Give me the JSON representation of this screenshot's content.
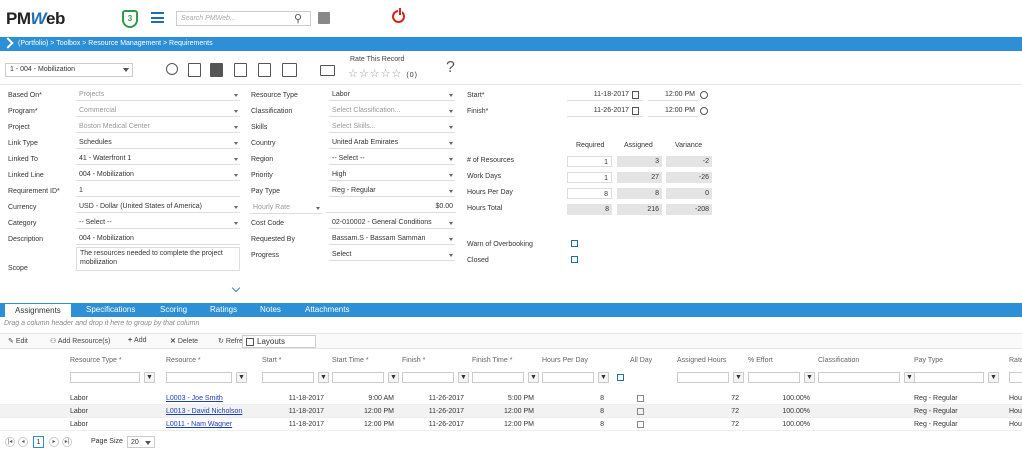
{
  "header": {
    "logo_prefix": "PM",
    "logo_w": "W",
    "logo_suffix": "eb",
    "shield_count": "3",
    "search_placeholder": "Search PMWeb..."
  },
  "breadcrumb": "(Portfolio) > Toolbox > Resource Management > Requirements",
  "toolbar": {
    "record_selector": "1 - 004 - Mobilization",
    "rate_label": "Rate This Record",
    "stars": "☆☆☆☆☆",
    "rating_count": "(0)",
    "help": "?"
  },
  "form": {
    "col1": [
      {
        "label": "Based On*",
        "value": "Projects",
        "disabled": true,
        "select": true
      },
      {
        "label": "Program*",
        "value": "Commercial",
        "disabled": true,
        "select": true
      },
      {
        "label": "Project",
        "value": "Boston Medical Center",
        "disabled": true,
        "select": true
      },
      {
        "label": "Link Type",
        "value": "Schedules",
        "disabled": false,
        "select": true
      },
      {
        "label": "Linked To",
        "value": "41 - Waterfront 1",
        "disabled": false,
        "select": true
      },
      {
        "label": "Linked Line",
        "value": "004 - Mobilization",
        "disabled": false,
        "select": true
      },
      {
        "label": "Requirement ID*",
        "value": "1",
        "disabled": false,
        "select": false
      },
      {
        "label": "Currency",
        "value": "USD - Dollar (United States of America)",
        "disabled": false,
        "select": true
      },
      {
        "label": "Category",
        "value": "-- Select --",
        "disabled": false,
        "select": true
      },
      {
        "label": "Description",
        "value": "004 - Mobilization",
        "disabled": false,
        "select": false
      }
    ],
    "scope_label": "Scope",
    "scope_value": "The resources needed to complete the project mobilization",
    "col2": [
      {
        "label": "Resource Type",
        "value": "Labor",
        "disabled": false,
        "select": true
      },
      {
        "label": "Classification",
        "value": "Select Classification...",
        "disabled": true,
        "select": true
      },
      {
        "label": "Skills",
        "value": "Select Skills...",
        "disabled": true,
        "select": true
      },
      {
        "label": "Country",
        "value": "United Arab Emirates",
        "disabled": false,
        "select": true
      },
      {
        "label": "Region",
        "value": "-- Select --",
        "disabled": false,
        "select": true
      },
      {
        "label": "Priority",
        "value": "High",
        "disabled": false,
        "select": true
      },
      {
        "label": "Pay Type",
        "value": "Reg - Regular",
        "disabled": false,
        "select": true
      },
      {
        "label": "",
        "value": "$0.00",
        "disabled": false,
        "select": false
      },
      {
        "label": "Cost Code",
        "value": "02-010002 - General Conditions",
        "disabled": false,
        "select": true
      },
      {
        "label": "Requested By",
        "value": "Bassam.S - Bassam Samman",
        "disabled": false,
        "select": true
      },
      {
        "label": "Progress",
        "value": "Select",
        "disabled": false,
        "select": true
      }
    ],
    "hourly_rate": "Hourly Rate",
    "start_label": "Start*",
    "start_date": "11-18-2017",
    "start_time": "12:00 PM",
    "finish_label": "Finish*",
    "finish_date": "11-26-2017",
    "finish_time": "12:00 PM"
  },
  "metrics": {
    "headers": [
      "Required",
      "Assigned",
      "Variance"
    ],
    "rows": [
      {
        "label": "# of Resources",
        "required": "1",
        "assigned": "3",
        "variance": "-2"
      },
      {
        "label": "Work Days",
        "required": "1",
        "assigned": "27",
        "variance": "-26"
      },
      {
        "label": "Hours Per Day",
        "required": "8",
        "assigned": "8",
        "variance": "0"
      },
      {
        "label": "Hours Total",
        "required": "8",
        "assigned": "216",
        "variance": "-208"
      }
    ],
    "warn_label": "Warn of Overbooking",
    "closed_label": "Closed"
  },
  "tabs": [
    "Assignments",
    "Specifications",
    "Scoring",
    "Ratings",
    "Notes",
    "Attachments"
  ],
  "grid": {
    "group_hint": "Drag a column header and drop it here to group by that column",
    "toolbar": [
      "Edit",
      "Add Resource(s)",
      "Add",
      "Delete",
      "Refresh"
    ],
    "layouts": "Layouts",
    "columns": [
      "Resource Type *",
      "Resource *",
      "Start *",
      "Start Time *",
      "Finish *",
      "Finish Time *",
      "Hours Per Day",
      "All Day",
      "Assigned Hours",
      "% Effort",
      "Classification",
      "Pay Type",
      "Rate"
    ],
    "rows": [
      [
        "Labor",
        "L0003 - Joe Smith",
        "11-18-2017",
        "9:00 AM",
        "11-26-2017",
        "5:00 PM",
        "8",
        "72",
        "100.00%",
        "Reg - Regular",
        "Hou"
      ],
      [
        "Labor",
        "L0013 - David Nicholson",
        "11-18-2017",
        "12:00 PM",
        "11-26-2017",
        "12:00 PM",
        "8",
        "72",
        "100.00%",
        "Reg - Regular",
        "Hou"
      ],
      [
        "Labor",
        "L0011 - Nam Wagner",
        "11-18-2017",
        "12:00 PM",
        "11-26-2017",
        "12:00 PM",
        "8",
        "72",
        "100.00%",
        "Reg - Regular",
        "Hou"
      ]
    ]
  },
  "pager": {
    "current": "1",
    "page_size_label": "Page Size",
    "page_size": "20"
  }
}
